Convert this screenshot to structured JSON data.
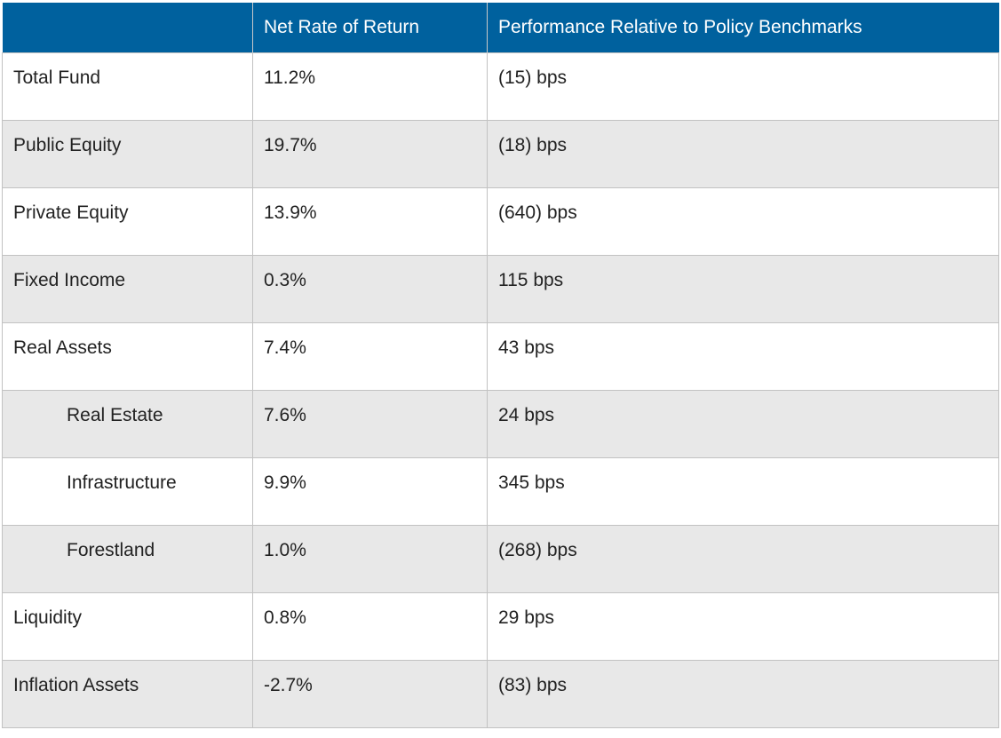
{
  "header": {
    "col1": "",
    "col2": "Net Rate of Return",
    "col3": "Performance Relative to Policy Benchmarks"
  },
  "rows": [
    {
      "name": "Total Fund",
      "rate": "11.2%",
      "perf": "(15) bps",
      "indent": false
    },
    {
      "name": "Public Equity",
      "rate": "19.7%",
      "perf": "(18) bps",
      "indent": false
    },
    {
      "name": "Private Equity",
      "rate": "13.9%",
      "perf": "(640) bps",
      "indent": false
    },
    {
      "name": "Fixed Income",
      "rate": "0.3%",
      "perf": "115 bps",
      "indent": false
    },
    {
      "name": "Real Assets",
      "rate": "7.4%",
      "perf": "43 bps",
      "indent": false
    },
    {
      "name": "Real Estate",
      "rate": "7.6%",
      "perf": "24 bps",
      "indent": true
    },
    {
      "name": "Infrastructure",
      "rate": "9.9%",
      "perf": "345 bps",
      "indent": true
    },
    {
      "name": "Forestland",
      "rate": "1.0%",
      "perf": "(268) bps",
      "indent": true
    },
    {
      "name": "Liquidity",
      "rate": "0.8%",
      "perf": "29 bps",
      "indent": false
    },
    {
      "name": "Inflation Assets",
      "rate": "-2.7%",
      "perf": "(83) bps",
      "indent": false
    }
  ]
}
